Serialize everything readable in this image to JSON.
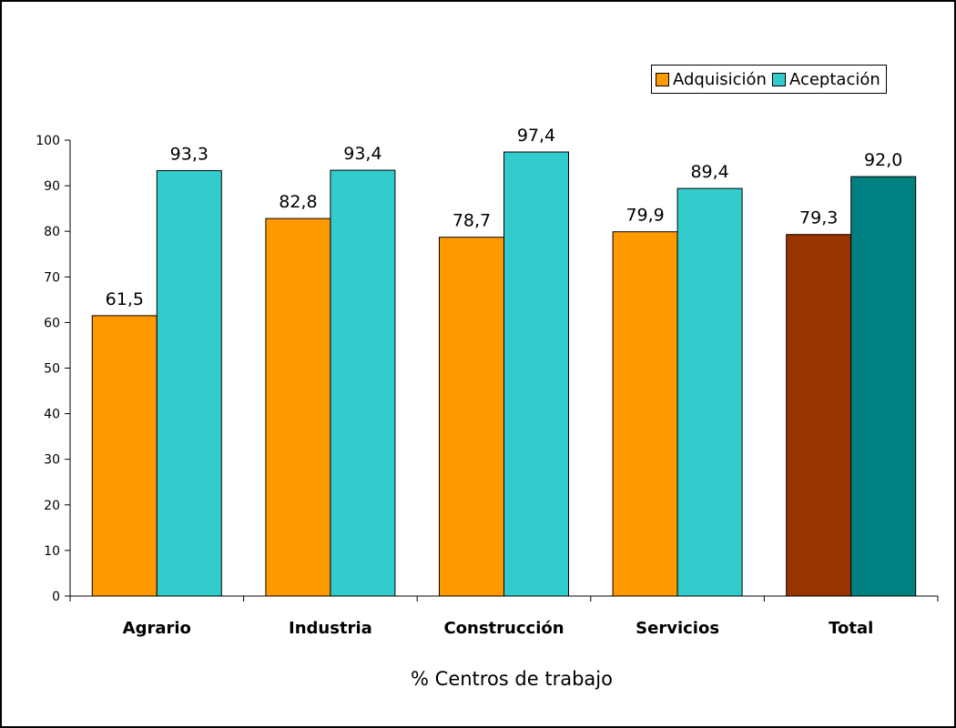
{
  "chart_data": {
    "type": "bar",
    "title": "",
    "xlabel": "% Centros de trabajo",
    "ylabel": "",
    "ylim": [
      0,
      100
    ],
    "yticks": [
      "0",
      "10",
      "20",
      "30",
      "40",
      "50",
      "60",
      "70",
      "80",
      "90",
      "100"
    ],
    "categories": [
      "Agrario",
      "Industria",
      "Construcción",
      "Servicios",
      "Total"
    ],
    "series": [
      {
        "name": "Adquisición",
        "color": "#FF9900",
        "values": [
          61.5,
          82.8,
          78.7,
          79.9,
          79.3
        ],
        "labels": [
          "61,5",
          "82,8",
          "78,7",
          "79,9",
          "79,3"
        ]
      },
      {
        "name": "Aceptación",
        "color": "#33CCCC",
        "values": [
          93.3,
          93.4,
          97.4,
          89.4,
          92.0
        ],
        "labels": [
          "93,3",
          "93,4",
          "97,4",
          "89,4",
          "92,0"
        ]
      }
    ],
    "highlight_colors": {
      "Total": [
        "#993300",
        "#008080"
      ]
    },
    "legend_position": "top-right",
    "grid": false
  }
}
